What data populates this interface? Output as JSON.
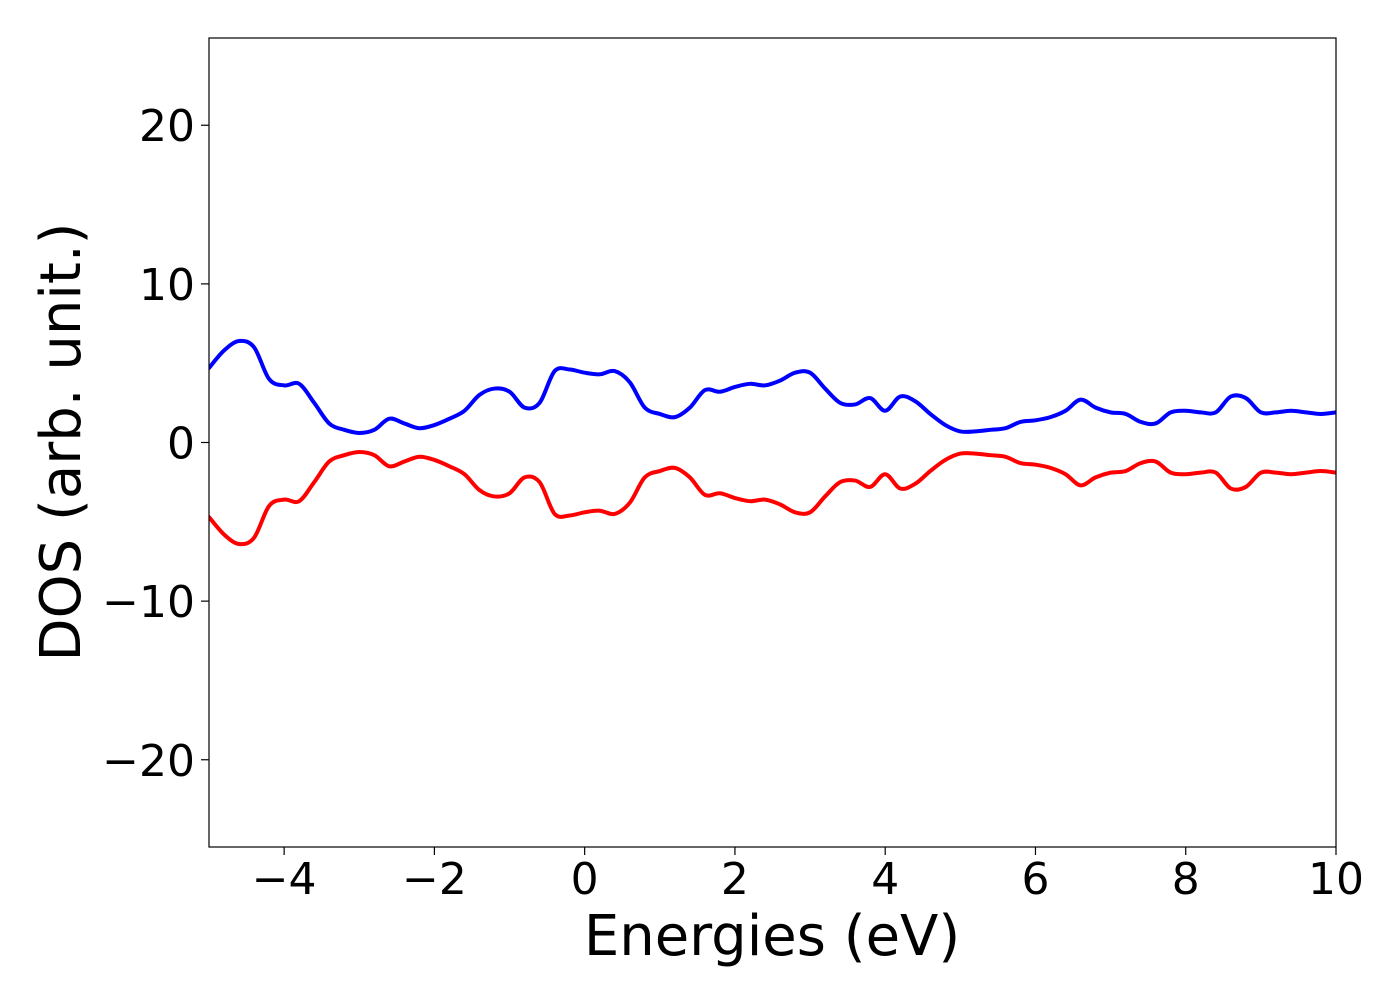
{
  "chart_data": {
    "type": "line",
    "title": "",
    "xlabel": "Energies (eV)",
    "ylabel": "DOS (arb. unit.)",
    "xlim": [
      -5,
      10
    ],
    "ylim": [
      -25.5,
      25.5
    ],
    "x_ticks": [
      -4,
      -2,
      0,
      2,
      4,
      6,
      8,
      10
    ],
    "y_ticks": [
      -20,
      -10,
      0,
      10,
      20
    ],
    "x_tick_labels": [
      "−4",
      "−2",
      "0",
      "2",
      "4",
      "6",
      "8",
      "10"
    ],
    "y_tick_labels": [
      "−20",
      "−10",
      "0",
      "10",
      "20"
    ],
    "grid": false,
    "legend": "none",
    "x": [
      -5.0,
      -4.8,
      -4.6,
      -4.4,
      -4.2,
      -4.0,
      -3.8,
      -3.6,
      -3.4,
      -3.2,
      -3.0,
      -2.8,
      -2.6,
      -2.4,
      -2.2,
      -2.0,
      -1.8,
      -1.6,
      -1.4,
      -1.2,
      -1.0,
      -0.8,
      -0.6,
      -0.4,
      -0.2,
      0.0,
      0.2,
      0.4,
      0.6,
      0.8,
      1.0,
      1.2,
      1.4,
      1.6,
      1.8,
      2.0,
      2.2,
      2.4,
      2.6,
      2.8,
      3.0,
      3.2,
      3.4,
      3.6,
      3.8,
      4.0,
      4.2,
      4.4,
      4.6,
      4.8,
      5.0,
      5.2,
      5.4,
      5.6,
      5.8,
      6.0,
      6.2,
      6.4,
      6.6,
      6.8,
      7.0,
      7.2,
      7.4,
      7.6,
      7.8,
      8.0,
      8.2,
      8.4,
      8.6,
      8.8,
      9.0,
      9.2,
      9.4,
      9.6,
      9.8,
      10.0
    ],
    "series": [
      {
        "color": "#0000ff",
        "values": [
          4.7,
          5.8,
          6.4,
          6.0,
          4.0,
          3.6,
          3.7,
          2.5,
          1.2,
          0.8,
          0.6,
          0.8,
          1.5,
          1.2,
          0.9,
          1.1,
          1.5,
          2.0,
          3.0,
          3.4,
          3.2,
          2.2,
          2.5,
          4.5,
          4.6,
          4.4,
          4.3,
          4.5,
          3.8,
          2.2,
          1.8,
          1.6,
          2.2,
          3.3,
          3.2,
          3.5,
          3.7,
          3.6,
          3.9,
          4.4,
          4.4,
          3.4,
          2.5,
          2.4,
          2.8,
          2.0,
          2.9,
          2.6,
          1.8,
          1.1,
          0.7,
          0.7,
          0.8,
          0.9,
          1.3,
          1.4,
          1.6,
          2.0,
          2.7,
          2.2,
          1.9,
          1.8,
          1.3,
          1.2,
          1.9,
          2.0,
          1.9,
          1.9,
          2.9,
          2.8,
          1.9,
          1.9,
          2.0,
          1.9,
          1.8,
          1.9
        ]
      },
      {
        "color": "#ff0000",
        "values": [
          -4.7,
          -5.8,
          -6.4,
          -6.0,
          -4.0,
          -3.6,
          -3.7,
          -2.5,
          -1.2,
          -0.8,
          -0.6,
          -0.8,
          -1.5,
          -1.2,
          -0.9,
          -1.1,
          -1.5,
          -2.0,
          -3.0,
          -3.4,
          -3.2,
          -2.2,
          -2.5,
          -4.5,
          -4.6,
          -4.4,
          -4.3,
          -4.5,
          -3.8,
          -2.2,
          -1.8,
          -1.6,
          -2.2,
          -3.3,
          -3.2,
          -3.5,
          -3.7,
          -3.6,
          -3.9,
          -4.4,
          -4.4,
          -3.4,
          -2.5,
          -2.4,
          -2.8,
          -2.0,
          -2.9,
          -2.6,
          -1.8,
          -1.1,
          -0.7,
          -0.7,
          -0.8,
          -0.9,
          -1.3,
          -1.4,
          -1.6,
          -2.0,
          -2.7,
          -2.2,
          -1.9,
          -1.8,
          -1.3,
          -1.2,
          -1.9,
          -2.0,
          -1.9,
          -1.9,
          -2.9,
          -2.8,
          -1.9,
          -1.9,
          -2.0,
          -1.9,
          -1.8,
          -1.9
        ]
      }
    ]
  }
}
